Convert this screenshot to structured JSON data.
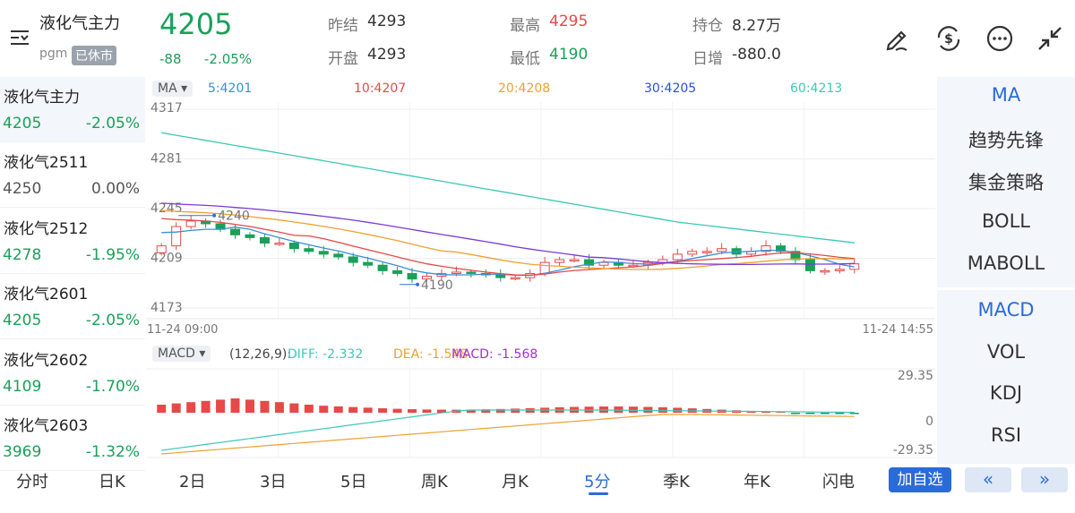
{
  "header": {
    "title": "液化气主力",
    "sub_code": "pgm",
    "status_badge": "已休市",
    "price": "4205",
    "change": "-88",
    "change_pct": "-2.05%",
    "stats": {
      "prev_settle_label": "昨结",
      "prev_settle": "4293",
      "open_label": "开盘",
      "open": "4293",
      "high_label": "最高",
      "high": "4295",
      "low_label": "最低",
      "low": "4190",
      "oi_label": "持仓",
      "oi": "8.27万",
      "oi_chg_label": "日增",
      "oi_chg": "-880.0"
    },
    "icons": [
      "pen-icon",
      "dollar-cycle-icon",
      "more-icon",
      "collapse-icon"
    ]
  },
  "sidebar": {
    "items": [
      {
        "name": "液化气主力",
        "price": "4205",
        "pct": "-2.05%",
        "trend": "down"
      },
      {
        "name": "液化气2511",
        "price": "4250",
        "pct": "0.00%",
        "trend": "flat"
      },
      {
        "name": "液化气2512",
        "price": "4278",
        "pct": "-1.95%",
        "trend": "down"
      },
      {
        "name": "液化气2601",
        "price": "4205",
        "pct": "-2.05%",
        "trend": "down"
      },
      {
        "name": "液化气2602",
        "price": "4109",
        "pct": "-1.70%",
        "trend": "down"
      },
      {
        "name": "液化气2603",
        "price": "3969",
        "pct": "-1.32%",
        "trend": "down"
      }
    ]
  },
  "chart": {
    "ma_selector": "MA",
    "ma5": "5:4201",
    "ma10": "10:4207",
    "ma20": "20:4208",
    "ma30": "30:4205",
    "ma60": "60:4213",
    "y_ticks": [
      "4317",
      "4281",
      "4245",
      "4209",
      "4173"
    ],
    "time_start": "11-24 09:00",
    "time_end": "11-24 14:55",
    "high_marker": "4240",
    "low_marker": "4190",
    "macd_selector": "MACD",
    "macd_params": "(12,26,9):",
    "diff": "DIFF: -2.332",
    "dea": "DEA: -1.548",
    "macd": "MACD: -1.568",
    "macd_ticks": [
      "29.35",
      "0",
      "-29.35"
    ],
    "colors": {
      "up": "#e84848",
      "down": "#1aa05a",
      "ma5": "#3a8fd8",
      "ma10": "#e84848",
      "ma20": "#f0a030",
      "ma30": "#7a3ad8",
      "ma60": "#3cc8b8"
    }
  },
  "chart_data": {
    "type": "candlestick",
    "ylim": [
      4173,
      4317
    ],
    "closes": [
      4218,
      4232,
      4236,
      4234,
      4230,
      4226,
      4224,
      4220,
      4220,
      4216,
      4214,
      4212,
      4210,
      4206,
      4204,
      4200,
      4198,
      4194,
      4196,
      4198,
      4199,
      4198,
      4197,
      4195,
      4195,
      4198,
      4206,
      4208,
      4208,
      4204,
      4206,
      4204,
      4204,
      4206,
      4208,
      4212,
      4214,
      4214,
      4216,
      4212,
      4214,
      4218,
      4214,
      4208,
      4200,
      4200,
      4201,
      4205
    ]
  },
  "right_panel": {
    "items": [
      "MA",
      "趋势先锋",
      "集金策略",
      "BOLL",
      "MABOLL",
      "MACD",
      "VOL",
      "KDJ",
      "RSI"
    ]
  },
  "bottom": {
    "tabs": [
      "分时",
      "日K",
      "2日",
      "3日",
      "5日",
      "周K",
      "月K",
      "5分",
      "季K",
      "年K",
      "闪电"
    ],
    "add_label": "加自选",
    "prev": "«",
    "next": "»"
  }
}
